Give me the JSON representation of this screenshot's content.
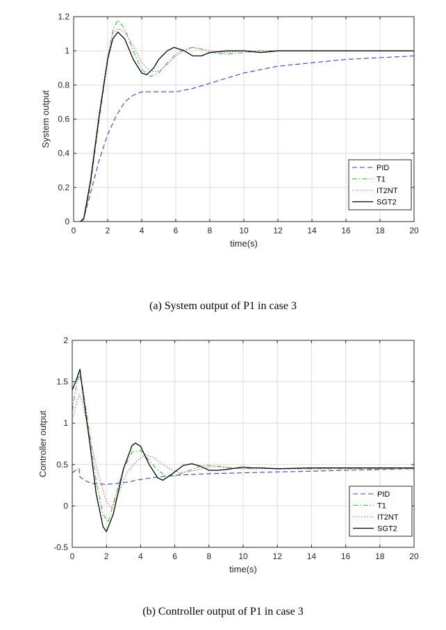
{
  "captions": {
    "a": "(a) System output of P1 in case 3",
    "b": "(b) Controller output of P1 in case 3"
  },
  "colors": {
    "PID": "#3a3adb",
    "T1": "#2fc42f",
    "IT2NT": "#e0407a",
    "SGT2": "#000000",
    "grid": "#dcdcdc",
    "axis": "#262626"
  },
  "chart_data": [
    {
      "type": "line",
      "title": "",
      "xlabel": "time(s)",
      "ylabel": "System output",
      "xlim": [
        0,
        20
      ],
      "ylim": [
        0,
        1.2
      ],
      "xticks": [
        0,
        2,
        4,
        6,
        8,
        10,
        12,
        14,
        16,
        18,
        20
      ],
      "yticks": [
        0,
        0.2,
        0.4,
        0.6,
        0.8,
        1,
        1.2
      ],
      "ytick_labels": [
        "0",
        "0.2",
        "0.4",
        "0.6",
        "0.8",
        "1",
        "1.2"
      ],
      "grid": true,
      "legend_position": "bottom-right",
      "series": [
        {
          "name": "PID",
          "style": "dashed",
          "color": "#3a3adb",
          "points": [
            [
              0.4,
              0
            ],
            [
              0.6,
              0.02
            ],
            [
              1.0,
              0.17
            ],
            [
              1.5,
              0.36
            ],
            [
              2,
              0.51
            ],
            [
              2.5,
              0.62
            ],
            [
              3,
              0.7
            ],
            [
              3.5,
              0.74
            ],
            [
              4,
              0.76
            ],
            [
              5,
              0.76
            ],
            [
              6,
              0.76
            ],
            [
              7,
              0.78
            ],
            [
              8,
              0.81
            ],
            [
              9,
              0.84
            ],
            [
              10,
              0.87
            ],
            [
              12,
              0.91
            ],
            [
              14,
              0.93
            ],
            [
              16,
              0.95
            ],
            [
              18,
              0.96
            ],
            [
              20,
              0.97
            ]
          ]
        },
        {
          "name": "T1",
          "style": "dashdot",
          "color": "#2fc42f",
          "points": [
            [
              0.4,
              0
            ],
            [
              0.6,
              0.01
            ],
            [
              1.0,
              0.22
            ],
            [
              1.5,
              0.6
            ],
            [
              2,
              0.95
            ],
            [
              2.3,
              1.12
            ],
            [
              2.6,
              1.18
            ],
            [
              3,
              1.13
            ],
            [
              3.5,
              1.0
            ],
            [
              4,
              0.89
            ],
            [
              4.5,
              0.85
            ],
            [
              5,
              0.87
            ],
            [
              5.5,
              0.93
            ],
            [
              6,
              0.98
            ],
            [
              6.5,
              1.01
            ],
            [
              7,
              1.02
            ],
            [
              7.5,
              1.01
            ],
            [
              8,
              0.99
            ],
            [
              9,
              0.98
            ],
            [
              10,
              0.99
            ],
            [
              11,
              1.0
            ],
            [
              12,
              1.0
            ],
            [
              20,
              1.0
            ]
          ]
        },
        {
          "name": "IT2NT",
          "style": "dotted",
          "color": "#e0407a",
          "points": [
            [
              0.4,
              0
            ],
            [
              0.6,
              0.02
            ],
            [
              1.0,
              0.26
            ],
            [
              1.5,
              0.64
            ],
            [
              2,
              0.97
            ],
            [
              2.3,
              1.1
            ],
            [
              2.6,
              1.13
            ],
            [
              3,
              1.11
            ],
            [
              3.5,
              1.03
            ],
            [
              4,
              0.93
            ],
            [
              4.5,
              0.88
            ],
            [
              5,
              0.88
            ],
            [
              5.5,
              0.92
            ],
            [
              6,
              0.97
            ],
            [
              6.5,
              1.0
            ],
            [
              7,
              1.02
            ],
            [
              7.5,
              1.01
            ],
            [
              8,
              1.0
            ],
            [
              9,
              0.99
            ],
            [
              10,
              1.0
            ],
            [
              12,
              1.0
            ],
            [
              20,
              1.0
            ]
          ]
        },
        {
          "name": "SGT2",
          "style": "solid",
          "color": "#000000",
          "points": [
            [
              0.4,
              0
            ],
            [
              0.6,
              0.02
            ],
            [
              1.0,
              0.24
            ],
            [
              1.5,
              0.62
            ],
            [
              2,
              0.95
            ],
            [
              2.3,
              1.07
            ],
            [
              2.6,
              1.11
            ],
            [
              3,
              1.07
            ],
            [
              3.5,
              0.95
            ],
            [
              4,
              0.87
            ],
            [
              4.3,
              0.86
            ],
            [
              4.7,
              0.9
            ],
            [
              5,
              0.95
            ],
            [
              5.5,
              1.0
            ],
            [
              5.9,
              1.02
            ],
            [
              6.5,
              1.0
            ],
            [
              7,
              0.97
            ],
            [
              7.5,
              0.97
            ],
            [
              8,
              0.99
            ],
            [
              9,
              1.0
            ],
            [
              10,
              1.0
            ],
            [
              11,
              0.99
            ],
            [
              12,
              1.0
            ],
            [
              20,
              1.0
            ]
          ]
        }
      ]
    },
    {
      "type": "line",
      "title": "",
      "xlabel": "time(s)",
      "ylabel": "Controller output",
      "xlim": [
        0,
        20
      ],
      "ylim": [
        -0.5,
        2
      ],
      "xticks": [
        0,
        2,
        4,
        6,
        8,
        10,
        12,
        14,
        16,
        18,
        20
      ],
      "yticks": [
        -0.5,
        0,
        0.5,
        1,
        1.5,
        2
      ],
      "ytick_labels": [
        "-0.5",
        "0",
        "0.5",
        "1",
        "1.5",
        "2"
      ],
      "grid": true,
      "legend_position": "bottom-right",
      "series": [
        {
          "name": "PID",
          "style": "dashed",
          "color": "#3a3adb",
          "points": [
            [
              0,
              0.4
            ],
            [
              0.2,
              0.43
            ],
            [
              0.4,
              0.45
            ],
            [
              0.45,
              0.35
            ],
            [
              0.8,
              0.3
            ],
            [
              1.2,
              0.27
            ],
            [
              2,
              0.26
            ],
            [
              3,
              0.28
            ],
            [
              4,
              0.32
            ],
            [
              5,
              0.35
            ],
            [
              6,
              0.37
            ],
            [
              7,
              0.38
            ],
            [
              8,
              0.39
            ],
            [
              10,
              0.4
            ],
            [
              12,
              0.41
            ],
            [
              14,
              0.42
            ],
            [
              16,
              0.43
            ],
            [
              18,
              0.44
            ],
            [
              20,
              0.45
            ]
          ]
        },
        {
          "name": "T1",
          "style": "dashdot",
          "color": "#2fc42f",
          "points": [
            [
              0,
              1.15
            ],
            [
              0.2,
              1.4
            ],
            [
              0.4,
              1.6
            ],
            [
              0.6,
              1.45
            ],
            [
              1.0,
              0.9
            ],
            [
              1.4,
              0.3
            ],
            [
              1.8,
              -0.1
            ],
            [
              2.1,
              -0.2
            ],
            [
              2.5,
              0.1
            ],
            [
              3,
              0.45
            ],
            [
              3.5,
              0.65
            ],
            [
              4,
              0.67
            ],
            [
              4.5,
              0.55
            ],
            [
              5,
              0.43
            ],
            [
              5.5,
              0.36
            ],
            [
              6,
              0.36
            ],
            [
              6.5,
              0.4
            ],
            [
              7,
              0.44
            ],
            [
              7.5,
              0.48
            ],
            [
              8,
              0.49
            ],
            [
              8.5,
              0.48
            ],
            [
              9,
              0.46
            ],
            [
              10,
              0.45
            ],
            [
              11,
              0.46
            ],
            [
              12,
              0.45
            ],
            [
              20,
              0.45
            ]
          ]
        },
        {
          "name": "IT2NT",
          "style": "dotted",
          "color": "#e0407a",
          "points": [
            [
              0,
              1.05
            ],
            [
              0.2,
              1.2
            ],
            [
              0.4,
              1.35
            ],
            [
              0.6,
              1.25
            ],
            [
              1.0,
              0.85
            ],
            [
              1.5,
              0.4
            ],
            [
              2,
              0.05
            ],
            [
              2.3,
              -0.02
            ],
            [
              2.7,
              0.15
            ],
            [
              3.2,
              0.4
            ],
            [
              3.8,
              0.55
            ],
            [
              4.3,
              0.62
            ],
            [
              4.8,
              0.58
            ],
            [
              5.3,
              0.5
            ],
            [
              5.8,
              0.44
            ],
            [
              6.3,
              0.4
            ],
            [
              7,
              0.42
            ],
            [
              8,
              0.47
            ],
            [
              8.5,
              0.48
            ],
            [
              9,
              0.47
            ],
            [
              10,
              0.45
            ],
            [
              12,
              0.45
            ],
            [
              20,
              0.45
            ]
          ]
        },
        {
          "name": "SGT2",
          "style": "solid",
          "color": "#000000",
          "points": [
            [
              0,
              1.4
            ],
            [
              0.2,
              1.5
            ],
            [
              0.45,
              1.65
            ],
            [
              0.6,
              1.4
            ],
            [
              1.0,
              0.8
            ],
            [
              1.4,
              0.15
            ],
            [
              1.8,
              -0.25
            ],
            [
              2.0,
              -0.31
            ],
            [
              2.4,
              -0.1
            ],
            [
              3,
              0.45
            ],
            [
              3.5,
              0.73
            ],
            [
              3.7,
              0.76
            ],
            [
              4,
              0.72
            ],
            [
              4.5,
              0.5
            ],
            [
              5,
              0.34
            ],
            [
              5.3,
              0.31
            ],
            [
              5.8,
              0.38
            ],
            [
              6.5,
              0.49
            ],
            [
              7,
              0.51
            ],
            [
              7.5,
              0.48
            ],
            [
              8,
              0.43
            ],
            [
              8.5,
              0.43
            ],
            [
              9,
              0.44
            ],
            [
              10,
              0.47
            ],
            [
              10.5,
              0.46
            ],
            [
              11,
              0.46
            ],
            [
              12,
              0.45
            ],
            [
              14,
              0.46
            ],
            [
              20,
              0.46
            ]
          ]
        }
      ]
    }
  ]
}
